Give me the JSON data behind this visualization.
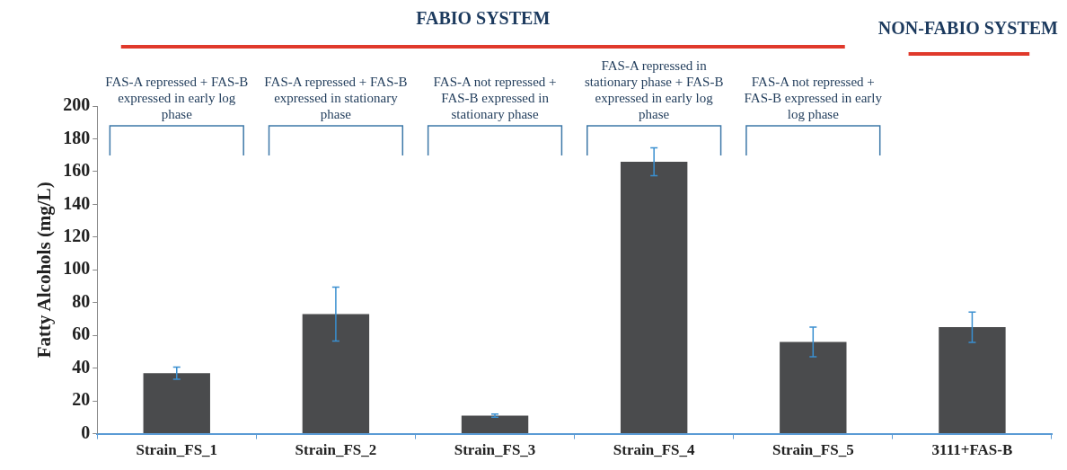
{
  "chart_data": {
    "type": "bar",
    "ylabel": "Fatty Alcohols (mg/L)",
    "categories": [
      "Strain_FS_1",
      "Strain_FS_2",
      "Strain_FS_3",
      "Strain_FS_4",
      "Strain_FS_5",
      "3111+FAS-B"
    ],
    "values": [
      37,
      73,
      11,
      166,
      56,
      65
    ],
    "errors": [
      3.7,
      16.5,
      1,
      8.5,
      9,
      9.3
    ],
    "color": "#4a4b4d",
    "ylim": [
      0,
      200
    ],
    "yticks": [
      0,
      20,
      40,
      60,
      80,
      100,
      120,
      140,
      160,
      180,
      200
    ],
    "grid": false,
    "annotations": [
      "FABIO SYSTEM",
      "NON-FABIO SYSTEM",
      "FAS-A repressed + FAS-B expressed in early log phase",
      "FAS-A repressed + FAS-B expressed in stationary phase",
      "FAS-A not repressed + FAS-B expressed in stationary phase",
      "FAS-A repressed in stationary phase + FAS-B expressed in early log phase",
      "FAS-A not repressed + FAS-B expressed in early log phase"
    ]
  }
}
